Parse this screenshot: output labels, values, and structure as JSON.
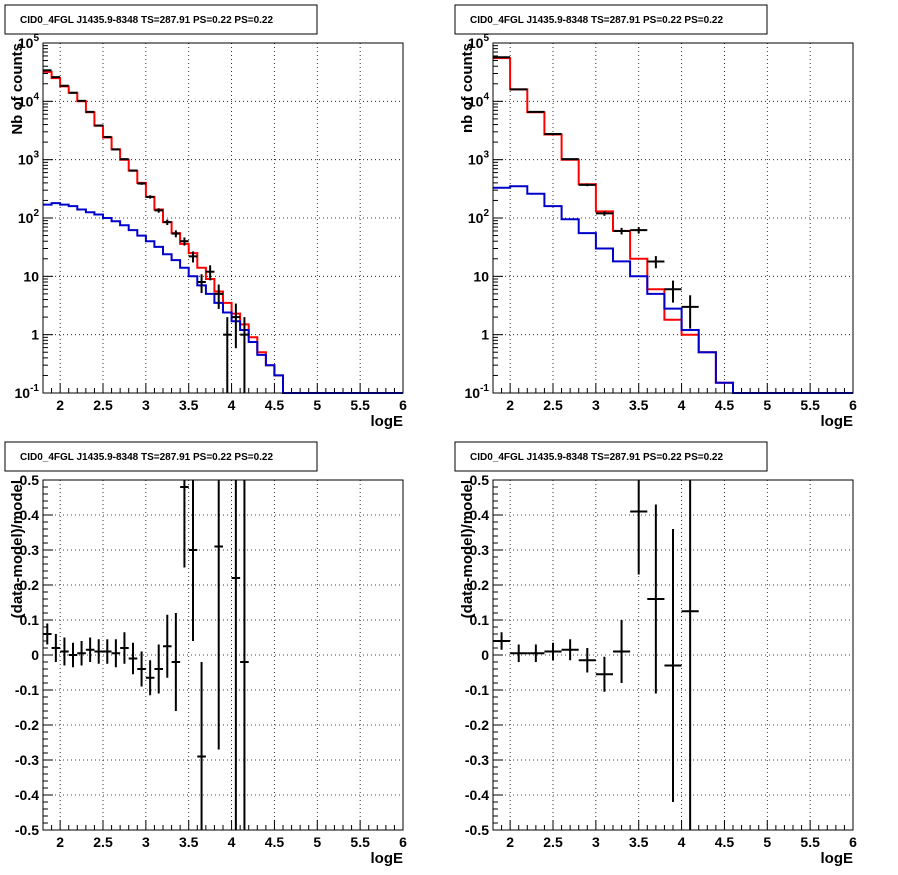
{
  "colors": {
    "data": "#000000",
    "total_model": "#ff0000",
    "source_model": "#0000cc",
    "grid": "#000000"
  },
  "chart_data": [
    {
      "type": "line",
      "title": "CID0_4FGL J1435.9-8348 TS=287.91 PS=0.22 PS=0.22",
      "xlabel": "logE",
      "ylabel": "Nb of counts",
      "log_y": true,
      "grid": true,
      "xlim": [
        1.8,
        6
      ],
      "ylim": [
        0.1,
        100000
      ],
      "x_ticks": [
        "2",
        "2.5",
        "3",
        "3.5",
        "4",
        "4.5",
        "5",
        "5.5",
        "6"
      ],
      "y_ticks": [
        "10^-1",
        "1",
        "10",
        "10^2",
        "10^3",
        "10^4",
        "10^5"
      ],
      "bin_edges": [
        1.8,
        1.9,
        2.0,
        2.1,
        2.2,
        2.3,
        2.4,
        2.5,
        2.6,
        2.7,
        2.8,
        2.9,
        3.0,
        3.1,
        3.2,
        3.3,
        3.4,
        3.5,
        3.6,
        3.7,
        3.8,
        3.9,
        4.0,
        4.1,
        4.2,
        4.3,
        4.4,
        4.5,
        4.6,
        4.7,
        4.8,
        4.9,
        5.0,
        5.1,
        5.2,
        5.3,
        5.4,
        5.5,
        5.6,
        5.7,
        5.8,
        5.9,
        6.0
      ],
      "series": [
        {
          "role": "total_model",
          "values": [
            32000,
            25000,
            18000,
            14000,
            10000,
            6500,
            3800,
            2400,
            1500,
            1000,
            650,
            400,
            230,
            140,
            85,
            55,
            36,
            25,
            14,
            9,
            5.5,
            3.5,
            2.3,
            1.5,
            0.9,
            0.5,
            0.3,
            0.2,
            0.1,
            0.1,
            0.1,
            0.1,
            0.1,
            0.1,
            0.1,
            0.1,
            0.1,
            0.1,
            0.1,
            0.1,
            0.1,
            0.1
          ]
        },
        {
          "role": "source_model",
          "values": [
            170,
            180,
            170,
            160,
            140,
            125,
            115,
            100,
            88,
            75,
            62,
            50,
            40,
            32,
            24,
            19,
            14,
            10,
            7,
            5,
            3.5,
            2.4,
            1.7,
            1.2,
            0.75,
            0.45,
            0.3,
            0.2,
            0.1,
            0.1,
            0.1,
            0.1,
            0.1,
            0.1,
            0.1,
            0.1,
            0.1,
            0.1,
            0.1,
            0.1,
            0.1,
            0.1
          ]
        }
      ],
      "points": [
        {
          "x": 1.85,
          "y": 34000
        },
        {
          "x": 1.95,
          "y": 26000
        },
        {
          "x": 2.05,
          "y": 18500
        },
        {
          "x": 2.15,
          "y": 14000
        },
        {
          "x": 2.25,
          "y": 10200
        },
        {
          "x": 2.35,
          "y": 6600
        },
        {
          "x": 2.45,
          "y": 3850
        },
        {
          "x": 2.55,
          "y": 2450
        },
        {
          "x": 2.65,
          "y": 1500
        },
        {
          "x": 2.75,
          "y": 1020
        },
        {
          "x": 2.85,
          "y": 650
        },
        {
          "x": 2.95,
          "y": 390
        },
        {
          "x": 3.05,
          "y": 230
        },
        {
          "x": 3.15,
          "y": 135
        },
        {
          "x": 3.25,
          "y": 85
        },
        {
          "x": 3.35,
          "y": 54
        },
        {
          "x": 3.45,
          "y": 40
        },
        {
          "x": 3.55,
          "y": 22
        },
        {
          "x": 3.65,
          "y": 8
        },
        {
          "x": 3.75,
          "y": 12
        },
        {
          "x": 3.85,
          "y": 5
        },
        {
          "x": 3.95,
          "y": 1
        },
        {
          "x": 4.05,
          "y": 2
        },
        {
          "x": 4.15,
          "y": 1
        }
      ]
    },
    {
      "type": "line",
      "title": "CID0_4FGL J1435.9-8348 TS=287.91 PS=0.22 PS=0.22",
      "xlabel": "logE",
      "ylabel": "nb of counts",
      "log_y": true,
      "grid": true,
      "xlim": [
        1.8,
        6
      ],
      "ylim": [
        0.1,
        100000
      ],
      "x_ticks": [
        "2",
        "2.5",
        "3",
        "3.5",
        "4",
        "4.5",
        "5",
        "5.5",
        "6"
      ],
      "y_ticks": [
        "10^-1",
        "1",
        "10",
        "10^2",
        "10^3",
        "10^4",
        "10^5"
      ],
      "bin_edges": [
        1.8,
        2.0,
        2.2,
        2.4,
        2.6,
        2.8,
        3.0,
        3.2,
        3.4,
        3.6,
        3.8,
        4.0,
        4.2,
        4.4,
        4.6,
        4.8,
        5.0,
        5.2,
        5.4,
        5.6,
        5.8,
        6.0
      ],
      "series": [
        {
          "role": "total_model",
          "values": [
            55000,
            16000,
            6500,
            2700,
            1000,
            380,
            130,
            60,
            20,
            6,
            1.8,
            1.0,
            0.5,
            0.15,
            0.1,
            0.1,
            0.1,
            0.1,
            0.1,
            0.1,
            0.1
          ]
        },
        {
          "role": "source_model",
          "values": [
            330,
            350,
            260,
            160,
            95,
            55,
            30,
            18,
            10,
            5,
            2.8,
            1.2,
            0.5,
            0.15,
            0.1,
            0.1,
            0.1,
            0.1,
            0.1,
            0.1,
            0.1
          ]
        }
      ],
      "points": [
        {
          "x": 1.9,
          "y": 57000
        },
        {
          "x": 2.1,
          "y": 16000
        },
        {
          "x": 2.3,
          "y": 6600
        },
        {
          "x": 2.5,
          "y": 2750
        },
        {
          "x": 2.7,
          "y": 1020
        },
        {
          "x": 2.9,
          "y": 370
        },
        {
          "x": 3.1,
          "y": 120
        },
        {
          "x": 3.3,
          "y": 60
        },
        {
          "x": 3.5,
          "y": 62
        },
        {
          "x": 3.7,
          "y": 18
        },
        {
          "x": 3.9,
          "y": 6
        },
        {
          "x": 4.1,
          "y": 3
        }
      ]
    },
    {
      "type": "scatter",
      "title": "CID0_4FGL J1435.9-8348 TS=287.91 PS=0.22 PS=0.22",
      "xlabel": "logE",
      "ylabel": "(data-model)/model",
      "grid": true,
      "xlim": [
        1.8,
        6
      ],
      "ylim": [
        -0.5,
        0.5
      ],
      "x_ticks": [
        "2",
        "2.5",
        "3",
        "3.5",
        "4",
        "4.5",
        "5",
        "5.5",
        "6"
      ],
      "y_ticks": [
        "-0.5",
        "-0.4",
        "-0.3",
        "-0.2",
        "-0.1",
        "0",
        "0.1",
        "0.2",
        "0.3",
        "0.4",
        "0.5"
      ],
      "points": [
        {
          "x": 1.85,
          "y": 0.06,
          "err": 0.03
        },
        {
          "x": 1.95,
          "y": 0.02,
          "err": 0.04
        },
        {
          "x": 2.05,
          "y": 0.01,
          "err": 0.04
        },
        {
          "x": 2.15,
          "y": 0.0,
          "err": 0.035
        },
        {
          "x": 2.25,
          "y": 0.005,
          "err": 0.035
        },
        {
          "x": 2.35,
          "y": 0.015,
          "err": 0.035
        },
        {
          "x": 2.45,
          "y": 0.01,
          "err": 0.035
        },
        {
          "x": 2.55,
          "y": 0.01,
          "err": 0.035
        },
        {
          "x": 2.65,
          "y": 0.005,
          "err": 0.04
        },
        {
          "x": 2.75,
          "y": 0.02,
          "err": 0.045
        },
        {
          "x": 2.85,
          "y": -0.01,
          "err": 0.045
        },
        {
          "x": 2.95,
          "y": -0.04,
          "err": 0.05
        },
        {
          "x": 3.05,
          "y": -0.065,
          "err": 0.05
        },
        {
          "x": 3.15,
          "y": -0.04,
          "err": 0.07
        },
        {
          "x": 3.25,
          "y": 0.025,
          "err": 0.09
        },
        {
          "x": 3.35,
          "y": -0.02,
          "err": 0.14
        },
        {
          "x": 3.45,
          "y": 0.48,
          "err": 0.23
        },
        {
          "x": 3.55,
          "y": 0.3,
          "err": 0.26
        },
        {
          "x": 3.65,
          "y": -0.29,
          "err": 0.27
        },
        {
          "x": 3.85,
          "y": 0.31,
          "err": 0.58
        },
        {
          "x": 4.05,
          "y": 0.22,
          "err": 1.0
        },
        {
          "x": 4.15,
          "y": -0.02,
          "err": 1.0
        }
      ]
    },
    {
      "type": "scatter",
      "title": "CID0_4FGL J1435.9-8348 TS=287.91 PS=0.22 PS=0.22",
      "xlabel": "logE",
      "ylabel": "(data-model)/model",
      "grid": true,
      "xlim": [
        1.8,
        6
      ],
      "ylim": [
        -0.5,
        0.5
      ],
      "x_ticks": [
        "2",
        "2.5",
        "3",
        "3.5",
        "4",
        "4.5",
        "5",
        "5.5",
        "6"
      ],
      "y_ticks": [
        "-0.5",
        "-0.4",
        "-0.3",
        "-0.2",
        "-0.1",
        "0",
        "0.1",
        "0.2",
        "0.3",
        "0.4",
        "0.5"
      ],
      "points": [
        {
          "x": 1.9,
          "y": 0.04,
          "err": 0.025
        },
        {
          "x": 2.1,
          "y": 0.005,
          "err": 0.025
        },
        {
          "x": 2.3,
          "y": 0.005,
          "err": 0.025
        },
        {
          "x": 2.5,
          "y": 0.01,
          "err": 0.025
        },
        {
          "x": 2.7,
          "y": 0.015,
          "err": 0.03
        },
        {
          "x": 2.9,
          "y": -0.015,
          "err": 0.035
        },
        {
          "x": 3.1,
          "y": -0.055,
          "err": 0.05
        },
        {
          "x": 3.3,
          "y": 0.01,
          "err": 0.09
        },
        {
          "x": 3.5,
          "y": 0.41,
          "err": 0.18
        },
        {
          "x": 3.7,
          "y": 0.16,
          "err": 0.27
        },
        {
          "x": 3.9,
          "y": -0.03,
          "err": 0.39
        },
        {
          "x": 4.1,
          "y": 0.125,
          "err": 0.9
        }
      ]
    }
  ]
}
